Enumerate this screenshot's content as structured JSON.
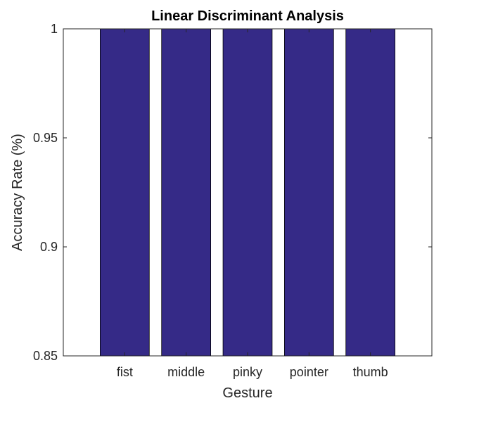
{
  "chart_data": {
    "type": "bar",
    "title": "Linear Discriminant Analysis",
    "xlabel": "Gesture",
    "ylabel": "Accuracy Rate (%)",
    "categories": [
      "fist",
      "middle",
      "pinky",
      "pointer",
      "thumb"
    ],
    "values": [
      1,
      1,
      1,
      1,
      1
    ],
    "ylim": [
      0.85,
      1
    ],
    "yticks": [
      0.85,
      0.9,
      0.95,
      1
    ],
    "ytick_labels": [
      "0.85",
      "0.9",
      "0.95",
      "1"
    ],
    "bar_color": "#352a87",
    "grid": false,
    "legend": "none"
  }
}
